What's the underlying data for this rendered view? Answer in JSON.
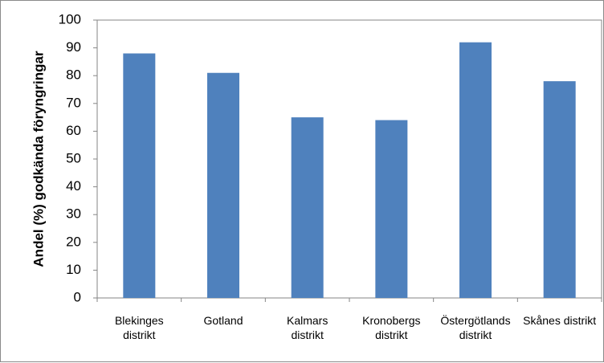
{
  "chart_data": {
    "type": "bar",
    "categories": [
      [
        "Blekinges",
        "distrikt"
      ],
      [
        "Gotland"
      ],
      [
        "Kalmars",
        "distrikt"
      ],
      [
        "Kronobergs",
        "distrikt"
      ],
      [
        "Östergötlands",
        "distrikt"
      ],
      [
        "Skånes distrikt"
      ]
    ],
    "values": [
      88,
      81,
      65,
      64,
      92,
      78
    ],
    "ylabel": "Andel (%) godkända föryngringar",
    "xlabel": "",
    "ylim": [
      0,
      100
    ],
    "yticks": [
      0,
      10,
      20,
      30,
      40,
      50,
      60,
      70,
      80,
      90,
      100
    ],
    "grid": false,
    "legend": "none",
    "colors": {
      "bar": "#4f81bd",
      "axis": "#868686"
    }
  }
}
